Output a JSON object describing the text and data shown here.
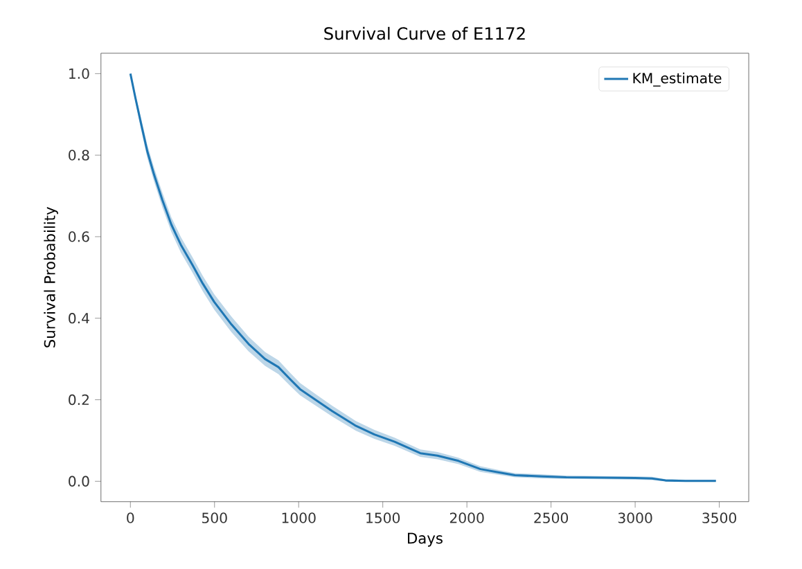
{
  "chart_data": {
    "type": "line",
    "title": "Survival Curve of E1172",
    "xlabel": "Days",
    "ylabel": "Survival Probability",
    "xlim": [
      -175,
      3675
    ],
    "ylim": [
      -0.05,
      1.05
    ],
    "xticks": [
      0,
      500,
      1000,
      1500,
      2000,
      2500,
      3000,
      3500
    ],
    "yticks": [
      {
        "value": 0,
        "label": "0.0"
      },
      0.2,
      0.4,
      0.6,
      0.8,
      {
        "value": 1,
        "label": "1.0"
      }
    ],
    "legend": "top right",
    "grid": false,
    "series": [
      {
        "name": "KM_estimate",
        "color": "#1f77b4",
        "x": [
          0,
          30,
          64,
          100,
          140,
          190,
          243,
          300,
          370,
          430,
          498,
          600,
          702,
          800,
          880,
          950,
          1008,
          1100,
          1200,
          1340,
          1450,
          1570,
          1723,
          1825,
          1950,
          2080,
          2185,
          2285,
          2450,
          2590,
          2800,
          3000,
          3100,
          3180,
          3300,
          3480
        ],
        "values": [
          1.0,
          0.94,
          0.876,
          0.81,
          0.753,
          0.69,
          0.63,
          0.58,
          0.53,
          0.485,
          0.44,
          0.385,
          0.337,
          0.3,
          0.28,
          0.25,
          0.226,
          0.2,
          0.172,
          0.136,
          0.115,
          0.097,
          0.069,
          0.063,
          0.05,
          0.03,
          0.022,
          0.015,
          0.012,
          0.01,
          0.009,
          0.008,
          0.007,
          0.002,
          0.001,
          0.001
        ],
        "lower": [
          1.0,
          0.93,
          0.862,
          0.794,
          0.736,
          0.672,
          0.612,
          0.561,
          0.511,
          0.466,
          0.421,
          0.366,
          0.319,
          0.283,
          0.263,
          0.234,
          0.211,
          0.186,
          0.159,
          0.124,
          0.104,
          0.087,
          0.06,
          0.054,
          0.042,
          0.023,
          0.016,
          0.01,
          0.007,
          0.006,
          0.005,
          0.004,
          0.003,
          0.0,
          0.0,
          0.0
        ],
        "upper": [
          1.0,
          0.95,
          0.89,
          0.826,
          0.77,
          0.708,
          0.648,
          0.599,
          0.549,
          0.504,
          0.459,
          0.404,
          0.355,
          0.317,
          0.297,
          0.266,
          0.241,
          0.214,
          0.185,
          0.148,
          0.126,
          0.107,
          0.078,
          0.072,
          0.058,
          0.037,
          0.028,
          0.02,
          0.017,
          0.014,
          0.013,
          0.012,
          0.011,
          0.005,
          0.004,
          0.004
        ]
      }
    ]
  }
}
